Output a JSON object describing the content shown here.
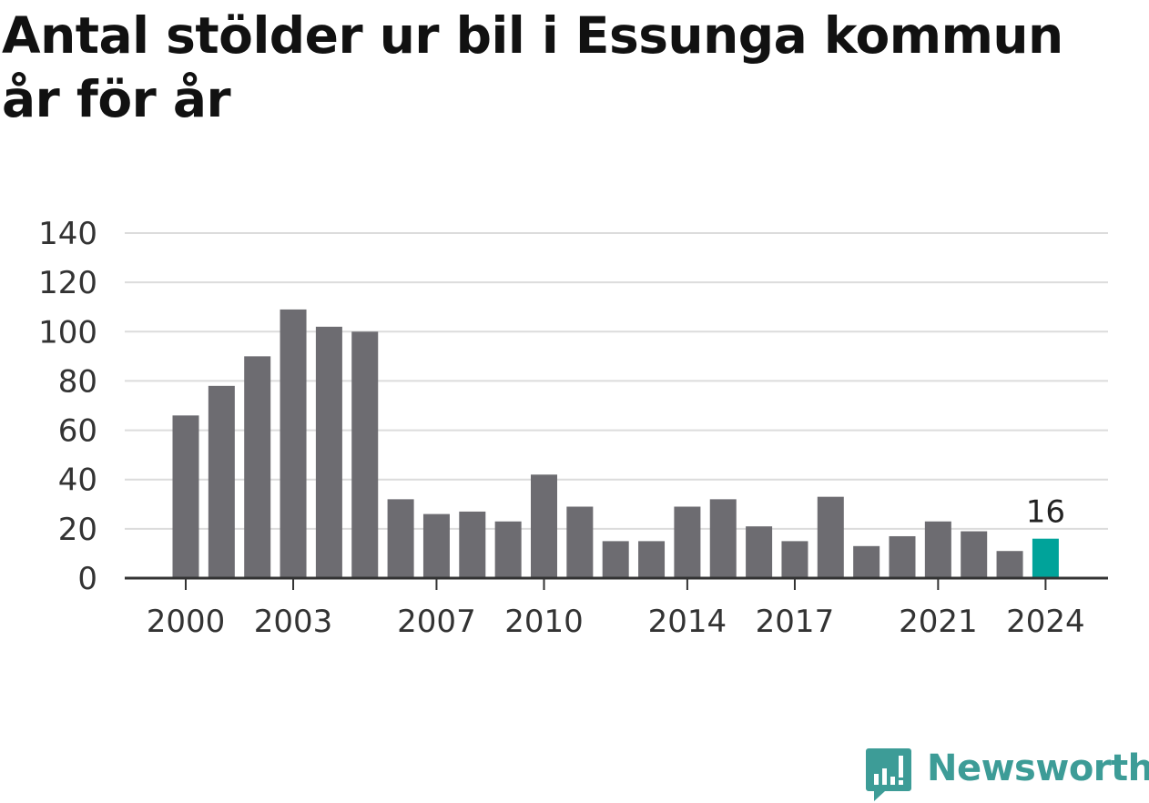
{
  "header": {
    "title": "Antal stölder ur bil i Essunga kommun år för år"
  },
  "brand": {
    "name": "Newsworthy",
    "icon": "newsworthy-logo-icon",
    "color": "#3d9c97"
  },
  "chart_data": {
    "type": "bar",
    "title": "Antal stölder ur bil i Essunga kommun år för år",
    "xlabel": "",
    "ylabel": "",
    "categories": [
      "2000",
      "2001",
      "2002",
      "2003",
      "2004",
      "2005",
      "2006",
      "2007",
      "2008",
      "2009",
      "2010",
      "2011",
      "2012",
      "2013",
      "2014",
      "2015",
      "2016",
      "2017",
      "2018",
      "2019",
      "2020",
      "2021",
      "2022",
      "2023",
      "2024"
    ],
    "values": [
      66,
      78,
      90,
      109,
      102,
      100,
      32,
      26,
      27,
      23,
      42,
      29,
      15,
      15,
      29,
      32,
      21,
      15,
      33,
      13,
      17,
      23,
      19,
      11,
      16
    ],
    "ylim": [
      0,
      140
    ],
    "yticks": [
      0,
      20,
      40,
      60,
      80,
      100,
      120,
      140
    ],
    "xtick_labels": [
      "2000",
      "2003",
      "2007",
      "2010",
      "2014",
      "2017",
      "2021",
      "2024"
    ],
    "grid": true,
    "bar_color": "#6d6c71",
    "highlight_color": "#00a39a",
    "highlight_category": "2024",
    "annotations": [
      {
        "category": "2024",
        "text": "16"
      }
    ]
  }
}
